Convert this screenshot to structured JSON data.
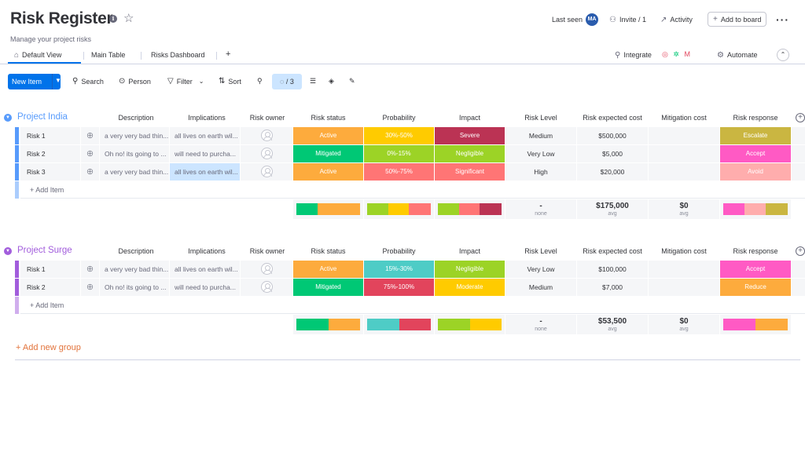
{
  "header": {
    "title": "Risk Register",
    "subtitle": "Manage your project risks",
    "last_seen_label": "Last seen",
    "avatar_initials": "MA",
    "invite_label": "Invite / 1",
    "activity_label": "Activity",
    "add_to_board_label": "Add to board"
  },
  "tabs": {
    "default_view": "Default View",
    "main_table": "Main Table",
    "risks_dashboard": "Risks Dashboard",
    "add": "+",
    "integrate": "Integrate",
    "automate": "Automate"
  },
  "toolbar": {
    "new_item": "New Item",
    "search": "Search",
    "person": "Person",
    "filter": "Filter",
    "sort": "Sort",
    "hidden_count": "/ 3"
  },
  "columns": {
    "description": "Description",
    "implications": "Implications",
    "risk_owner": "Risk owner",
    "risk_status": "Risk status",
    "probability": "Probability",
    "impact": "Impact",
    "risk_level": "Risk Level",
    "expected_cost": "Risk expected cost",
    "mitigation_cost": "Mitigation cost",
    "risk_response": "Risk response"
  },
  "groups": [
    {
      "name": "Project India",
      "color": "#579bfc",
      "rows": [
        {
          "name": "Risk 1",
          "description": "a very very bad thin...",
          "implications": "all lives on earth wil...",
          "status": "Active",
          "status_color": "#fdab3d",
          "probability": "30%-50%",
          "probability_color": "#ffcb00",
          "impact": "Severe",
          "impact_color": "#bb3354",
          "level": "Medium",
          "cost": "$500,000",
          "mitigation": "",
          "response": "Escalate",
          "response_color": "#cab641"
        },
        {
          "name": "Risk 2",
          "description": "Oh no! its going to ...",
          "implications": "will need to purcha...",
          "status": "Mitigated",
          "status_color": "#00c875",
          "probability": "0%-15%",
          "probability_color": "#9cd326",
          "impact": "Negligible",
          "impact_color": "#9cd326",
          "level": "Very Low",
          "cost": "$5,000",
          "mitigation": "",
          "response": "Accept",
          "response_color": "#ff5ac4"
        },
        {
          "name": "Risk 3",
          "description": "a very very bad thin...",
          "implications": "all lives on earth wil...",
          "status": "Active",
          "status_color": "#fdab3d",
          "probability": "50%-75%",
          "probability_color": "#ff7575",
          "impact": "Significant",
          "impact_color": "#ff7575",
          "level": "High",
          "cost": "$20,000",
          "mitigation": "",
          "response": "Avoid",
          "response_color": "#ffadad"
        }
      ],
      "add_item": "+ Add Item",
      "summary": {
        "level_value": "-",
        "level_sub": "none",
        "cost_value": "$175,000",
        "cost_sub": "avg",
        "mitigation_value": "$0",
        "mitigation_sub": "avg",
        "status_bar": [
          {
            "color": "#00c875",
            "fraction": 0.33
          },
          {
            "color": "#fdab3d",
            "fraction": 0.67
          }
        ],
        "probability_bar": [
          {
            "color": "#9cd326",
            "fraction": 0.33
          },
          {
            "color": "#ffcb00",
            "fraction": 0.33
          },
          {
            "color": "#ff7575",
            "fraction": 0.34
          }
        ],
        "impact_bar": [
          {
            "color": "#9cd326",
            "fraction": 0.33
          },
          {
            "color": "#ff7575",
            "fraction": 0.33
          },
          {
            "color": "#bb3354",
            "fraction": 0.34
          }
        ],
        "response_bar": [
          {
            "color": "#ff5ac4",
            "fraction": 0.33
          },
          {
            "color": "#ffadad",
            "fraction": 0.33
          },
          {
            "color": "#cab641",
            "fraction": 0.34
          }
        ]
      }
    },
    {
      "name": "Project Surge",
      "color": "#a25ddc",
      "rows": [
        {
          "name": "Risk 1",
          "description": "a very very bad thin...",
          "implications": "all lives on earth wil...",
          "status": "Active",
          "status_color": "#fdab3d",
          "probability": "15%-30%",
          "probability_color": "#4eccc6",
          "impact": "Negligible",
          "impact_color": "#9cd326",
          "level": "Very Low",
          "cost": "$100,000",
          "mitigation": "",
          "response": "Accept",
          "response_color": "#ff5ac4"
        },
        {
          "name": "Risk 2",
          "description": "Oh no! its going to ...",
          "implications": "will need to purcha...",
          "status": "Mitigated",
          "status_color": "#00c875",
          "probability": "75%-100%",
          "probability_color": "#e2445c",
          "impact": "Moderate",
          "impact_color": "#ffcb00",
          "level": "Medium",
          "cost": "$7,000",
          "mitigation": "",
          "response": "Reduce",
          "response_color": "#fdab3d"
        }
      ],
      "add_item": "+ Add Item",
      "summary": {
        "level_value": "-",
        "level_sub": "none",
        "cost_value": "$53,500",
        "cost_sub": "avg",
        "mitigation_value": "$0",
        "mitigation_sub": "avg",
        "status_bar": [
          {
            "color": "#00c875",
            "fraction": 0.5
          },
          {
            "color": "#fdab3d",
            "fraction": 0.5
          }
        ],
        "probability_bar": [
          {
            "color": "#4eccc6",
            "fraction": 0.5
          },
          {
            "color": "#e2445c",
            "fraction": 0.5
          }
        ],
        "impact_bar": [
          {
            "color": "#9cd326",
            "fraction": 0.5
          },
          {
            "color": "#ffcb00",
            "fraction": 0.5
          }
        ],
        "response_bar": [
          {
            "color": "#ff5ac4",
            "fraction": 0.5
          },
          {
            "color": "#fdab3d",
            "fraction": 0.5
          }
        ]
      }
    }
  ],
  "add_new_group": "+ Add new group",
  "colors": {
    "primary": "#0073ea",
    "add_group": "#e2733b"
  }
}
